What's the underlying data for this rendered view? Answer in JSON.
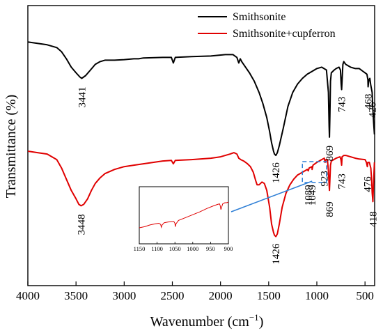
{
  "chart_data": {
    "type": "line",
    "xlabel": "Wavenumber (cm",
    "xlabel_sup": "−1",
    "xlabel_tail": ")",
    "ylabel": "Transmittance (%)",
    "xlim": [
      4000,
      400
    ],
    "x_reversed": true,
    "x_ticks": [
      {
        "v": 4000,
        "label": "4000"
      },
      {
        "v": 3500,
        "label": "3500"
      },
      {
        "v": 3000,
        "label": "3000"
      },
      {
        "v": 2500,
        "label": "2500"
      },
      {
        "v": 2000,
        "label": "2000"
      },
      {
        "v": 1500,
        "label": "1500"
      },
      {
        "v": 1000,
        "label": "1000"
      },
      {
        "v": 500,
        "label": "500"
      }
    ],
    "legend_position": "top-right",
    "series": [
      {
        "name": "Smithsonite",
        "color": "#000000",
        "points": [
          [
            4000,
            87
          ],
          [
            3900,
            86.5
          ],
          [
            3800,
            86
          ],
          [
            3700,
            85
          ],
          [
            3650,
            83.5
          ],
          [
            3600,
            81
          ],
          [
            3550,
            78
          ],
          [
            3500,
            76
          ],
          [
            3460,
            74.5
          ],
          [
            3441,
            74
          ],
          [
            3400,
            75
          ],
          [
            3350,
            77
          ],
          [
            3300,
            79
          ],
          [
            3250,
            80
          ],
          [
            3200,
            80.5
          ],
          [
            3100,
            80.5
          ],
          [
            3000,
            80.7
          ],
          [
            2900,
            81
          ],
          [
            2850,
            81
          ],
          [
            2800,
            81.3
          ],
          [
            2600,
            81.5
          ],
          [
            2510,
            81.5
          ],
          [
            2490,
            79.5
          ],
          [
            2470,
            81.5
          ],
          [
            2300,
            81.8
          ],
          [
            2100,
            82
          ],
          [
            1950,
            82.5
          ],
          [
            1870,
            82.5
          ],
          [
            1830,
            81.5
          ],
          [
            1810,
            79.5
          ],
          [
            1795,
            81
          ],
          [
            1780,
            80
          ],
          [
            1740,
            78
          ],
          [
            1700,
            76
          ],
          [
            1650,
            73
          ],
          [
            1600,
            69
          ],
          [
            1560,
            65
          ],
          [
            1520,
            60
          ],
          [
            1490,
            55
          ],
          [
            1470,
            51
          ],
          [
            1450,
            48
          ],
          [
            1440,
            47
          ],
          [
            1426,
            46.5
          ],
          [
            1410,
            47.5
          ],
          [
            1390,
            50
          ],
          [
            1350,
            56
          ],
          [
            1300,
            64
          ],
          [
            1250,
            69
          ],
          [
            1200,
            72
          ],
          [
            1150,
            74
          ],
          [
            1100,
            75.5
          ],
          [
            1050,
            76.5
          ],
          [
            1000,
            77.5
          ],
          [
            950,
            78
          ],
          [
            900,
            77
          ],
          [
            880,
            69
          ],
          [
            873,
            57
          ],
          [
            869,
            53
          ],
          [
            865,
            60
          ],
          [
            858,
            73
          ],
          [
            850,
            76
          ],
          [
            820,
            77
          ],
          [
            800,
            77.5
          ],
          [
            770,
            78
          ],
          [
            755,
            77
          ],
          [
            748,
            72
          ],
          [
            743,
            70
          ],
          [
            738,
            73
          ],
          [
            730,
            79
          ],
          [
            720,
            80
          ],
          [
            700,
            79
          ],
          [
            650,
            78
          ],
          [
            600,
            77.5
          ],
          [
            560,
            77.5
          ],
          [
            520,
            76.5
          ],
          [
            500,
            76
          ],
          [
            480,
            75.5
          ],
          [
            470,
            73.5
          ],
          [
            468,
            71
          ],
          [
            460,
            73.5
          ],
          [
            450,
            74
          ],
          [
            440,
            71.5
          ],
          [
            426,
            69
          ],
          [
            420,
            64
          ],
          [
            410,
            58
          ],
          [
            402,
            54
          ]
        ]
      },
      {
        "name": "Smithsonite+cupferron",
        "color": "#e00000",
        "points": [
          [
            4000,
            48
          ],
          [
            3900,
            47.5
          ],
          [
            3800,
            47
          ],
          [
            3700,
            45
          ],
          [
            3650,
            42
          ],
          [
            3600,
            38
          ],
          [
            3550,
            34
          ],
          [
            3500,
            31
          ],
          [
            3470,
            29
          ],
          [
            3448,
            28.5
          ],
          [
            3420,
            29
          ],
          [
            3380,
            31
          ],
          [
            3340,
            34
          ],
          [
            3300,
            36.5
          ],
          [
            3250,
            38.5
          ],
          [
            3200,
            40
          ],
          [
            3100,
            41.5
          ],
          [
            3000,
            42.5
          ],
          [
            2900,
            43
          ],
          [
            2800,
            43.5
          ],
          [
            2700,
            44
          ],
          [
            2600,
            44.5
          ],
          [
            2510,
            44.7
          ],
          [
            2490,
            43.5
          ],
          [
            2470,
            44.7
          ],
          [
            2300,
            45
          ],
          [
            2100,
            45.5
          ],
          [
            2000,
            46
          ],
          [
            1900,
            47
          ],
          [
            1860,
            47.5
          ],
          [
            1830,
            47
          ],
          [
            1810,
            45.5
          ],
          [
            1790,
            45
          ],
          [
            1760,
            44.5
          ],
          [
            1720,
            43.5
          ],
          [
            1690,
            42.5
          ],
          [
            1660,
            40.5
          ],
          [
            1635,
            37.5
          ],
          [
            1620,
            36
          ],
          [
            1600,
            36
          ],
          [
            1570,
            37
          ],
          [
            1545,
            36.5
          ],
          [
            1520,
            34
          ],
          [
            1490,
            28
          ],
          [
            1470,
            22
          ],
          [
            1450,
            19
          ],
          [
            1440,
            18
          ],
          [
            1426,
            17.5
          ],
          [
            1410,
            18.5
          ],
          [
            1390,
            22
          ],
          [
            1360,
            28
          ],
          [
            1320,
            33
          ],
          [
            1280,
            36
          ],
          [
            1240,
            38
          ],
          [
            1200,
            39.5
          ],
          [
            1150,
            40.5
          ],
          [
            1100,
            41.5
          ],
          [
            1089,
            41
          ],
          [
            1080,
            42
          ],
          [
            1050,
            42.5
          ],
          [
            1049,
            41.5
          ],
          [
            1040,
            43
          ],
          [
            1000,
            44
          ],
          [
            950,
            45
          ],
          [
            923,
            45.5
          ],
          [
            915,
            44
          ],
          [
            905,
            45
          ],
          [
            890,
            45
          ],
          [
            880,
            41
          ],
          [
            873,
            36
          ],
          [
            869,
            34
          ],
          [
            864,
            38
          ],
          [
            858,
            43
          ],
          [
            850,
            44.5
          ],
          [
            800,
            45.5
          ],
          [
            760,
            46
          ],
          [
            750,
            45
          ],
          [
            743,
            43
          ],
          [
            738,
            46
          ],
          [
            720,
            46.5
          ],
          [
            700,
            46.5
          ],
          [
            650,
            46
          ],
          [
            600,
            45.5
          ],
          [
            560,
            45.2
          ],
          [
            500,
            45
          ],
          [
            485,
            44
          ],
          [
            476,
            42.5
          ],
          [
            470,
            44
          ],
          [
            455,
            44
          ],
          [
            440,
            42
          ],
          [
            432,
            38
          ],
          [
            425,
            33
          ],
          [
            418,
            30
          ],
          [
            412,
            36
          ],
          [
            402,
            44
          ]
        ]
      }
    ],
    "annotations": [
      {
        "text": "3441",
        "x": 3441,
        "series": 0
      },
      {
        "text": "1426",
        "x": 1426,
        "series": 0
      },
      {
        "text": "869",
        "x": 869,
        "series": 0
      },
      {
        "text": "743",
        "x": 743,
        "series": 0
      },
      {
        "text": "468",
        "x": 468,
        "series": 0
      },
      {
        "text": "426",
        "x": 426,
        "series": 0
      },
      {
        "text": "3448",
        "x": 3448,
        "series": 1
      },
      {
        "text": "1426",
        "x": 1426,
        "series": 1
      },
      {
        "text": "1089",
        "x": 1089,
        "series": 1
      },
      {
        "text": "1049",
        "x": 1049,
        "series": 1
      },
      {
        "text": "923",
        "x": 923,
        "series": 1
      },
      {
        "text": "869",
        "x": 869,
        "series": 1
      },
      {
        "text": "743",
        "x": 743,
        "series": 1
      },
      {
        "text": "476",
        "x": 476,
        "series": 1
      },
      {
        "text": "418",
        "x": 418,
        "series": 1
      }
    ],
    "inset": {
      "xlim": [
        1150,
        900
      ],
      "source_range": [
        1150,
        900
      ],
      "x_ticks": [
        {
          "v": 1150,
          "label": "1150"
        },
        {
          "v": 1100,
          "label": "1100"
        },
        {
          "v": 1050,
          "label": "1050"
        },
        {
          "v": 1000,
          "label": "1000"
        },
        {
          "v": 950,
          "label": "950"
        },
        {
          "v": 900,
          "label": "900"
        }
      ],
      "points": [
        [
          1150,
          28
        ],
        [
          1135,
          30
        ],
        [
          1120,
          33
        ],
        [
          1105,
          35
        ],
        [
          1095,
          36
        ],
        [
          1090,
          34
        ],
        [
          1088,
          29
        ],
        [
          1086,
          33
        ],
        [
          1080,
          37
        ],
        [
          1070,
          38
        ],
        [
          1060,
          39
        ],
        [
          1053,
          39
        ],
        [
          1050,
          36
        ],
        [
          1049,
          30
        ],
        [
          1047,
          35
        ],
        [
          1040,
          41
        ],
        [
          1020,
          46
        ],
        [
          1000,
          51
        ],
        [
          980,
          56
        ],
        [
          960,
          62
        ],
        [
          940,
          67
        ],
        [
          930,
          69
        ],
        [
          925,
          70
        ],
        [
          923,
          67
        ],
        [
          921,
          60
        ],
        [
          919,
          64
        ],
        [
          916,
          70
        ],
        [
          910,
          72
        ],
        [
          905,
          72
        ],
        [
          900,
          73
        ]
      ]
    }
  }
}
